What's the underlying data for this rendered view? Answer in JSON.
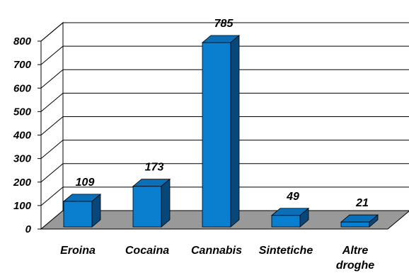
{
  "chart_data": {
    "type": "bar",
    "categories": [
      "Eroina",
      "Cocaina",
      "Cannabis",
      "Sintetiche",
      "Altre droghe"
    ],
    "category_lines": [
      [
        "Eroina"
      ],
      [
        "Cocaina"
      ],
      [
        "Cannabis"
      ],
      [
        "Sintetiche"
      ],
      [
        "Altre",
        "droghe"
      ]
    ],
    "values": [
      109,
      173,
      785,
      49,
      21
    ],
    "value_labels": [
      "109",
      "173",
      "785",
      "49",
      "21"
    ],
    "ylim": [
      0,
      800
    ],
    "yticks": [
      0,
      100,
      200,
      300,
      400,
      500,
      600,
      700,
      800
    ],
    "ytick_labels": [
      "0",
      "100",
      "200",
      "300",
      "400",
      "500",
      "600",
      "700",
      "800"
    ],
    "grid": true,
    "legend": "none",
    "style": "3d",
    "colors": {
      "bar_front": "#0a7fd0",
      "bar_top": "#0b6fb8",
      "bar_side": "#08477a",
      "floor": "#999999",
      "wall": "#ffffff",
      "grid": "#000000"
    }
  }
}
